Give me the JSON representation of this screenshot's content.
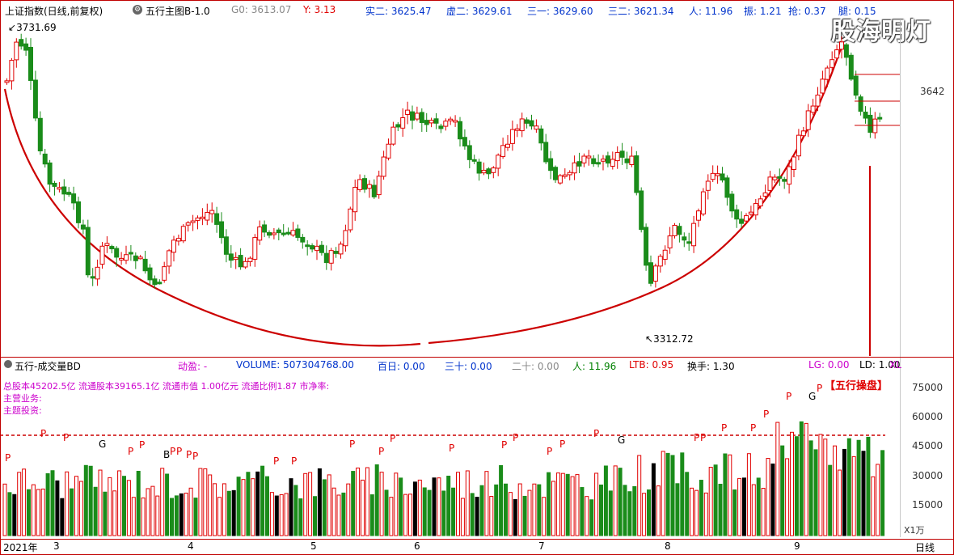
{
  "header": {
    "index_label": "上证指数(日线,前复权)",
    "indicator_label": "五行主图B-1.0",
    "g0_label": "G0: 3613.07",
    "y_label": "Y: 3.13",
    "shi2": "实二: 3625.47",
    "xu2": "虚二: 3629.61",
    "san1": "三一: 3629.60",
    "san2": "三二: 3621.34",
    "ren": "人: 11.96",
    "zhen": "振: 1.21",
    "qiang": "抢: 0.37",
    "tui": "腿: 0.15"
  },
  "watermark": "股海明灯",
  "main_chart": {
    "high_label": "3731.69",
    "low_label": "3312.72",
    "price_tick": "3642"
  },
  "volume_panel": {
    "title": "五行-成交量BD",
    "dongying": "动盈: -",
    "volume": "VOLUME: 507304768.00",
    "bairi": "百日: 0.00",
    "sanshi": "三十: 0.00",
    "ershi": "二十: 0.00",
    "ren": "人: 11.96",
    "ltb": "LTB: 0.95",
    "huanshou": "换手: 1.30",
    "lg": "LG: 0.00",
    "ld": "LD: 1.00",
    "xl": "XL",
    "info_line1": "总股本45202.5亿 流通股本39165.1亿 流通市值 1.00亿元  流通比例1.87    市净率:",
    "info_line2": "主营业务:",
    "info_line3": "主题投资:",
    "wuxing_tag": "【五行操盘】",
    "axis_ticks": [
      "75000",
      "60000",
      "45000",
      "30000",
      "15000"
    ],
    "unit": "X1万"
  },
  "time_axis": {
    "labels": [
      "2021年",
      "3",
      "4",
      "5",
      "6",
      "7",
      "8",
      "9"
    ],
    "period": "日线"
  },
  "colors": {
    "up": "#e00000",
    "down": "#1a8c1a",
    "arc": "#cc0000",
    "text_blue": "#0033cc"
  }
}
